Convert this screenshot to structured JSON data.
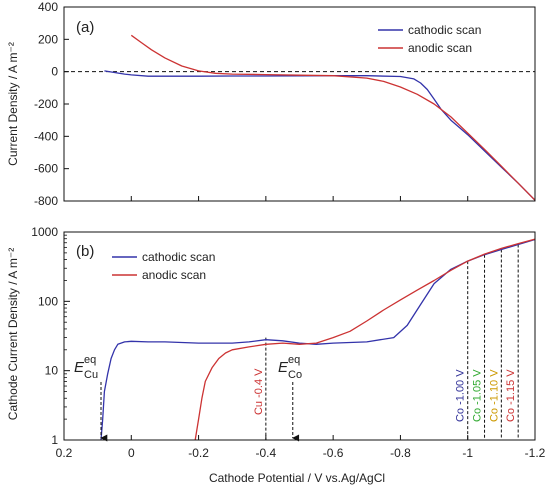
{
  "chart_data": [
    {
      "type": "line",
      "panel_label": "(a)",
      "ylabel": "Current Density / A m⁻²",
      "xlim": [
        0.2,
        -1.2
      ],
      "ylim": [
        -800,
        400
      ],
      "yticks": [
        -800,
        -600,
        -400,
        -200,
        0,
        200,
        400
      ],
      "ytick_labels": [
        "-800",
        "-600",
        "-400",
        "-200",
        "0",
        "200",
        "400"
      ],
      "zero_line": "dashed",
      "legend_position": "top-right",
      "series": [
        {
          "name": "cathodic scan",
          "color": "#3333aa",
          "x": [
            0.08,
            0.05,
            0.02,
            0.0,
            -0.05,
            -0.1,
            -0.2,
            -0.3,
            -0.4,
            -0.5,
            -0.6,
            -0.7,
            -0.8,
            -0.84,
            -0.86,
            -0.88,
            -0.9,
            -0.92,
            -0.95,
            -1.0,
            -1.05,
            -1.1,
            -1.15,
            -1.2
          ],
          "y": [
            5,
            -5,
            -15,
            -20,
            -28,
            -28,
            -28,
            -27,
            -27,
            -26,
            -25,
            -25,
            -30,
            -45,
            -70,
            -110,
            -170,
            -230,
            -300,
            -390,
            -490,
            -590,
            -690,
            -795
          ]
        },
        {
          "name": "anodic scan",
          "color": "#cc3333",
          "x": [
            0.0,
            -0.03,
            -0.06,
            -0.1,
            -0.15,
            -0.2,
            -0.25,
            -0.3,
            -0.4,
            -0.5,
            -0.6,
            -0.7,
            -0.75,
            -0.8,
            -0.85,
            -0.9,
            -0.95,
            -1.0,
            -1.05,
            -1.1,
            -1.15,
            -1.2
          ],
          "y": [
            225,
            180,
            135,
            85,
            35,
            5,
            -10,
            -15,
            -18,
            -22,
            -25,
            -40,
            -60,
            -95,
            -140,
            -200,
            -280,
            -380,
            -480,
            -585,
            -690,
            -795
          ]
        }
      ]
    },
    {
      "type": "line",
      "panel_label": "(b)",
      "ylabel": "Cathode Current Density / A m⁻²",
      "xlabel": "Cathode Potential / V vs.Ag/AgCl",
      "xlim": [
        0.2,
        -1.2
      ],
      "ylim": [
        1,
        1000
      ],
      "yscale": "log",
      "yticks": [
        1,
        10,
        100,
        1000
      ],
      "ytick_labels": [
        "1",
        "10",
        "100",
        "1000"
      ],
      "xticks": [
        0.2,
        0,
        -0.2,
        -0.4,
        -0.6,
        -0.8,
        -1,
        -1.2
      ],
      "xtick_labels": [
        "0.2",
        "0",
        "-0.2",
        "-0.4",
        "-0.6",
        "-0.8",
        "-1",
        "-1.2"
      ],
      "legend_position": "top-left",
      "series": [
        {
          "name": "cathodic scan",
          "color": "#3333aa",
          "x": [
            0.09,
            0.085,
            0.08,
            0.07,
            0.06,
            0.05,
            0.04,
            0.02,
            0.0,
            -0.05,
            -0.1,
            -0.2,
            -0.3,
            -0.35,
            -0.4,
            -0.45,
            -0.5,
            -0.55,
            -0.6,
            -0.7,
            -0.78,
            -0.82,
            -0.86,
            -0.9,
            -0.95,
            -1.0,
            -1.05,
            -1.1,
            -1.15,
            -1.2
          ],
          "y": [
            1.0,
            2.0,
            5.0,
            9.0,
            15,
            20,
            24,
            26,
            26.5,
            26,
            26,
            25,
            25,
            26,
            28,
            27,
            25,
            24,
            25,
            26,
            30,
            45,
            90,
            180,
            290,
            380,
            470,
            560,
            660,
            780
          ]
        },
        {
          "name": "anodic scan",
          "color": "#cc3333",
          "x": [
            -0.19,
            -0.2,
            -0.21,
            -0.22,
            -0.24,
            -0.26,
            -0.28,
            -0.3,
            -0.35,
            -0.4,
            -0.45,
            -0.5,
            -0.55,
            -0.6,
            -0.65,
            -0.7,
            -0.75,
            -0.8,
            -0.85,
            -0.9,
            -0.95,
            -1.0,
            -1.05,
            -1.1,
            -1.15,
            -1.2
          ],
          "y": [
            1.0,
            2.0,
            4.0,
            7.0,
            11,
            15,
            18,
            20,
            22,
            24,
            25,
            24,
            25,
            30,
            37,
            52,
            75,
            105,
            145,
            200,
            280,
            380,
            480,
            580,
            680,
            790
          ]
        }
      ],
      "annotations": {
        "e_cu": {
          "letter": "E",
          "sup": "eq",
          "sub": "Cu",
          "x": 0.09
        },
        "e_co": {
          "letter": "E",
          "sup": "eq",
          "sub": "Co",
          "x": -0.48
        },
        "markers": [
          {
            "text": "Cu -0.4 V",
            "x": -0.4,
            "color": "#cc3333",
            "ytop": 30
          },
          {
            "text": "Co -1.00 V",
            "x": -1.0,
            "color": "#333399",
            "ytop": 380
          },
          {
            "text": "Co -1.05 V",
            "x": -1.05,
            "color": "#33aa33",
            "ytop": 470
          },
          {
            "text": "Co -1.10 V",
            "x": -1.1,
            "color": "#cc9900",
            "ytop": 560
          },
          {
            "text": "Co -1.15 V",
            "x": -1.15,
            "color": "#cc3333",
            "ytop": 660
          }
        ]
      }
    }
  ]
}
